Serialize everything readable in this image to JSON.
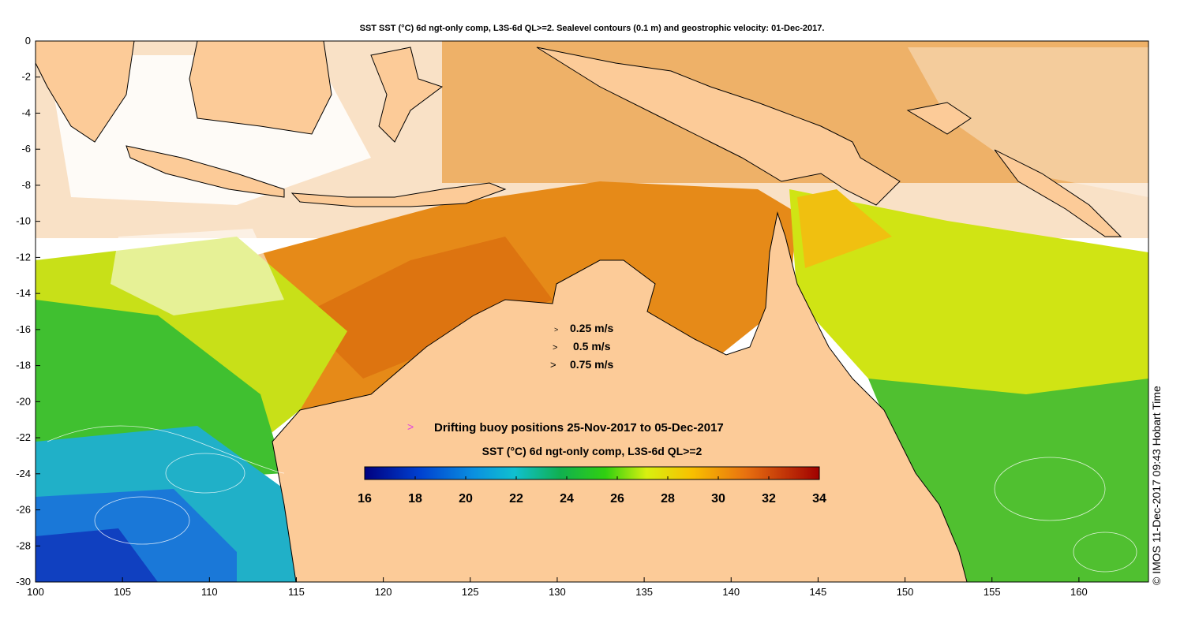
{
  "title": "SST SST (°C) 6d ngt-only comp, L3S-6d QL>=2. Sealevel contours (0.1 m) and geostrophic velocity: 01-Dec-2017.",
  "credit": "© IMOS 11-Dec-2017 09:43 Hobart Time",
  "map": {
    "lon_range": [
      100,
      164
    ],
    "lat_range": [
      -30,
      0
    ],
    "x_ticks": [
      "100",
      "105",
      "110",
      "115",
      "120",
      "125",
      "130",
      "135",
      "140",
      "145",
      "150",
      "155",
      "160"
    ],
    "y_ticks": [
      "0",
      "-2",
      "-4",
      "-6",
      "-8",
      "-10",
      "-12",
      "-14",
      "-16",
      "-18",
      "-20",
      "-22",
      "-24",
      "-26",
      "-28",
      "-30"
    ],
    "land_color": "#fccb98"
  },
  "legend": {
    "velocity_labels": [
      "0.25 m/s",
      "0.5 m/s",
      "0.75 m/s"
    ],
    "buoy_marker": ">",
    "buoy_color": "#e040e0",
    "buoy_label": "Drifting buoy positions 25-Nov-2017 to 05-Dec-2017",
    "colorbar_title": "SST (°C) 6d ngt-only comp, L3S-6d QL>=2",
    "colorbar_range": [
      16,
      34
    ],
    "colorbar_ticks": [
      "16",
      "18",
      "20",
      "22",
      "24",
      "26",
      "28",
      "30",
      "32",
      "34"
    ]
  }
}
